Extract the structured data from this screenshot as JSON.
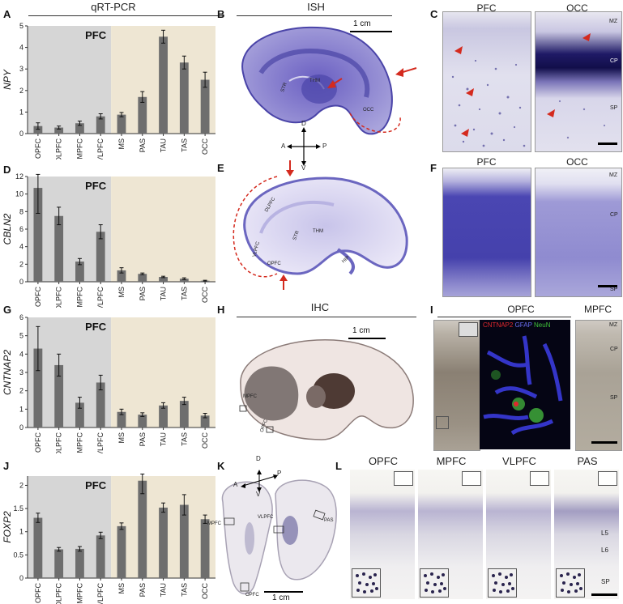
{
  "header": {
    "qrt": "qRT-PCR",
    "ish": "ISH",
    "ihc": "IHC"
  },
  "letters": {
    "A": "A",
    "B": "B",
    "C": "C",
    "D": "D",
    "E": "E",
    "F": "F",
    "G": "G",
    "H": "H",
    "I": "I",
    "J": "J",
    "K": "K",
    "L": "L"
  },
  "pfc_label": "PFC",
  "chart_data": [
    {
      "type": "bar",
      "ylabel": "NPY",
      "ylim": [
        0,
        5
      ],
      "yticks": [
        0,
        1,
        2,
        3,
        4,
        5
      ],
      "categories": [
        "OPFC",
        "DLPFC",
        "MPFC",
        "VLPFC",
        "MS",
        "PAS",
        "TAU",
        "TAS",
        "OCC"
      ],
      "values": [
        0.35,
        0.28,
        0.48,
        0.8,
        0.88,
        1.7,
        4.5,
        3.3,
        2.5
      ],
      "errors": [
        0.15,
        0.07,
        0.1,
        0.12,
        0.1,
        0.25,
        0.3,
        0.3,
        0.35
      ]
    },
    {
      "type": "bar",
      "ylabel": "CBLN2",
      "ylim": [
        0,
        12
      ],
      "yticks": [
        0,
        2,
        4,
        6,
        8,
        10,
        12
      ],
      "categories": [
        "OPFC",
        "DLPFC",
        "MPFC",
        "VLPFC",
        "MS",
        "PAS",
        "TAU",
        "TAS",
        "OCC"
      ],
      "values": [
        10.7,
        7.5,
        2.3,
        5.7,
        1.3,
        0.9,
        0.55,
        0.35,
        0.12
      ],
      "errors": [
        2.9,
        1.0,
        0.35,
        0.8,
        0.3,
        0.1,
        0.08,
        0.1,
        0.05
      ]
    },
    {
      "type": "bar",
      "ylabel": "CNTNAP2",
      "ylim": [
        0,
        6
      ],
      "yticks": [
        0,
        1,
        2,
        3,
        4,
        5,
        6
      ],
      "categories": [
        "OPFC",
        "DLPFC",
        "MPFC",
        "VLPFC",
        "MS",
        "PAS",
        "TAU",
        "TAS",
        "OCC"
      ],
      "values": [
        4.3,
        3.4,
        1.35,
        2.45,
        0.85,
        0.7,
        1.2,
        1.45,
        0.65
      ],
      "errors": [
        1.2,
        0.6,
        0.3,
        0.4,
        0.15,
        0.1,
        0.15,
        0.2,
        0.12
      ]
    },
    {
      "type": "bar",
      "ylabel": "FOXP2",
      "ylim": [
        0,
        2.2
      ],
      "yticks": [
        0,
        0.5,
        1,
        1.5,
        2
      ],
      "ytick_labels": [
        "0",
        "0.5",
        "1",
        "1.5",
        "2"
      ],
      "categories": [
        "OPFC",
        "DLPFC",
        "MPFC",
        "VLPFC",
        "MS",
        "PAS",
        "TAU",
        "TAS",
        "OCC"
      ],
      "values": [
        1.3,
        0.62,
        0.63,
        0.92,
        1.12,
        2.1,
        1.52,
        1.58,
        1.27
      ],
      "errors": [
        0.1,
        0.04,
        0.05,
        0.07,
        0.07,
        0.28,
        0.1,
        0.22,
        0.09
      ]
    }
  ],
  "brainB": {
    "labels": [
      "STR",
      "THM",
      "OCC"
    ],
    "scale": "1 cm"
  },
  "compass1": {
    "d": "D",
    "a": "A",
    "p": "P",
    "v": "V"
  },
  "brainE": {
    "labels": [
      "DLPFC",
      "STR",
      "THM",
      "VLPFC",
      "OPFC",
      "HIP"
    ]
  },
  "panelC": {
    "left": "PFC",
    "right": "OCC",
    "layers": [
      "MZ",
      "CP",
      "SP"
    ]
  },
  "panelF": {
    "left": "PFC",
    "right": "OCC",
    "layers": [
      "MZ",
      "CP",
      "SP"
    ]
  },
  "panelH": {
    "labels": [
      "MPFC",
      "OPFC"
    ],
    "scale": "1 cm"
  },
  "panelI": {
    "left": "OPFC",
    "right": "MPFC",
    "stain1": "CNTNAP2",
    "stain2": "GFAP",
    "stain3": "NeuN",
    "layers": [
      "MZ",
      "CP",
      "SP"
    ]
  },
  "panelK": {
    "labels": [
      "MPFC",
      "VLPFC",
      "PAS",
      "OPFC"
    ],
    "scale": "1 cm",
    "compass": {
      "d": "D",
      "a": "A",
      "p": "P",
      "v": "V"
    }
  },
  "panelL": {
    "titles": [
      "OPFC",
      "MPFC",
      "VLPFC",
      "PAS"
    ],
    "layers": [
      "L5",
      "L6",
      "SP"
    ]
  },
  "colors": {
    "pfc_bg": "#d6d6d6",
    "rest_bg": "#eee6d3",
    "bar": "#6e6e6e",
    "ish": "#5a55b8",
    "arrow": "#d42a1e"
  }
}
